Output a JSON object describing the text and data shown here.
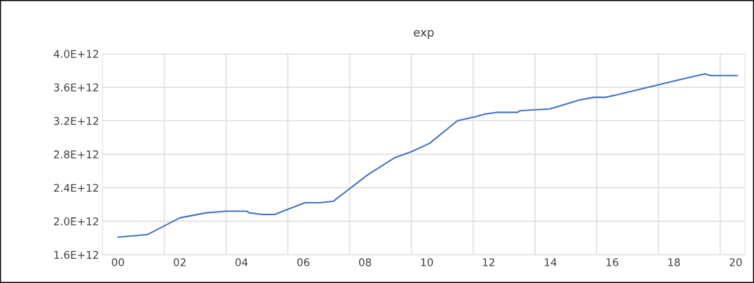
{
  "chart_data": {
    "type": "line",
    "title": "exp",
    "x": [
      2000.0,
      2000.95,
      2002.0,
      2002.85,
      2003.5,
      2004.17,
      2004.25,
      2004.7,
      2005.07,
      2006.05,
      2006.53,
      2006.98,
      2008.07,
      2008.97,
      2009.5,
      2010.09,
      2010.99,
      2011.59,
      2011.89,
      2012.26,
      2012.94,
      2013.01,
      2013.98,
      2014.96,
      2015.41,
      2015.78,
      2016.16,
      2017.5,
      2018.18,
      2019.0,
      2019.19,
      2020.05
    ],
    "series": [
      {
        "color": "#4472c4",
        "values": [
          1810000000000.0,
          1840000000000.0,
          2040000000000.0,
          2100000000000.0,
          2120000000000.0,
          2120000000000.0,
          2100000000000.0,
          2080000000000.0,
          2080000000000.0,
          2220000000000.0,
          2220000000000.0,
          2240000000000.0,
          2550000000000.0,
          2760000000000.0,
          2830000000000.0,
          2930000000000.0,
          3200000000000.0,
          3250000000000.0,
          3280000000000.0,
          3300000000000.0,
          3300000000000.0,
          3320000000000.0,
          3340000000000.0,
          3450000000000.0,
          3480000000000.0,
          3480000000000.0,
          3510000000000.0,
          3630000000000.0,
          3690000000000.0,
          3760000000000.0,
          3740000000000.0,
          3740000000000.0
        ]
      }
    ],
    "xlim": [
      1999.5,
      2020.3
    ],
    "xticks": [
      {
        "value": 2000,
        "label": "00"
      },
      {
        "value": 2002,
        "label": "02"
      },
      {
        "value": 2004,
        "label": "04"
      },
      {
        "value": 2006,
        "label": "06"
      },
      {
        "value": 2008,
        "label": "08"
      },
      {
        "value": 2010,
        "label": "10"
      },
      {
        "value": 2012,
        "label": "12"
      },
      {
        "value": 2014,
        "label": "14"
      },
      {
        "value": 2016,
        "label": "16"
      },
      {
        "value": 2018,
        "label": "18"
      },
      {
        "value": 2020,
        "label": "20"
      },
      {
        "value": 2001.5,
        "label": null
      },
      {
        "value": 2003.5,
        "label": null
      },
      {
        "value": 2005.5,
        "label": null
      },
      {
        "value": 2007.5,
        "label": null
      },
      {
        "value": 2009.5,
        "label": null
      },
      {
        "value": 2011.5,
        "label": null
      },
      {
        "value": 2013.5,
        "label": null
      },
      {
        "value": 2015.5,
        "label": null
      },
      {
        "value": 2017.5,
        "label": null
      },
      {
        "value": 2019.5,
        "label": null
      }
    ],
    "ylim": [
      1600000000000.0,
      4000000000000.0
    ],
    "yticks": [
      {
        "value": 1600000000000.0,
        "label": "1.6E+12"
      },
      {
        "value": 2000000000000.0,
        "label": "2.0E+12"
      },
      {
        "value": 2400000000000.0,
        "label": "2.4E+12"
      },
      {
        "value": 2800000000000.0,
        "label": "2.8E+12"
      },
      {
        "value": 3200000000000.0,
        "label": "3.2E+12"
      },
      {
        "value": 3600000000000.0,
        "label": "3.6E+12"
      },
      {
        "value": 4000000000000.0,
        "label": "4.0E+12"
      }
    ],
    "grid": true,
    "legend": false,
    "marker": "none",
    "line_style": "solid"
  }
}
